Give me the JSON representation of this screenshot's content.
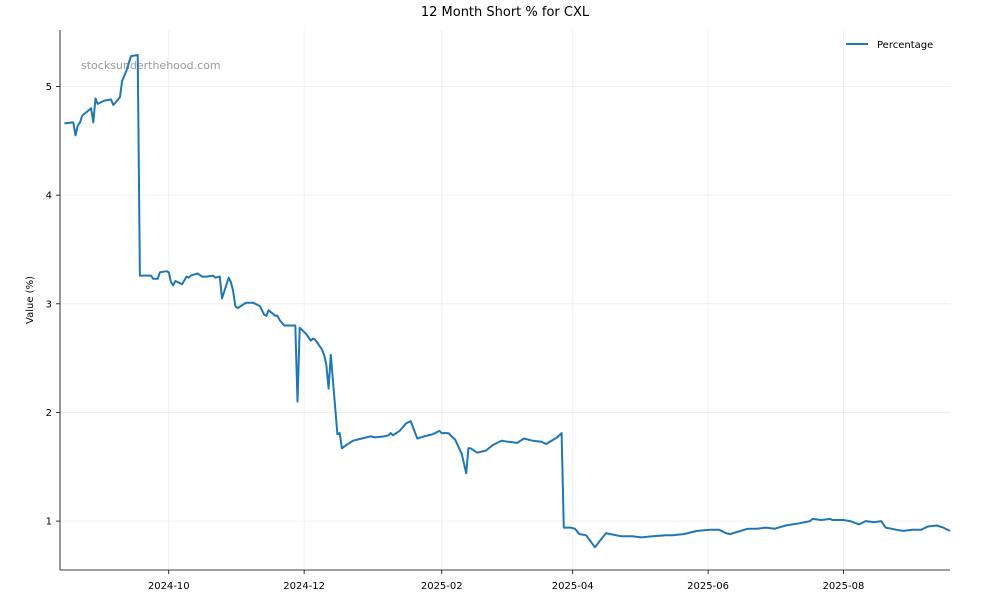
{
  "chart_data": {
    "type": "line",
    "title": "12 Month Short % for CXL",
    "xlabel": "",
    "ylabel": "Value (%)",
    "watermark": "stocksunderthehood.com",
    "x_range": [
      "2024-08-13",
      "2025-09-18"
    ],
    "ylim": [
      0.55,
      5.52
    ],
    "grid": true,
    "legend_position": "top-right",
    "x_ticks": [
      "2024-10",
      "2024-12",
      "2025-02",
      "2025-04",
      "2025-06",
      "2025-08"
    ],
    "y_ticks": [
      1,
      2,
      3,
      4,
      5
    ],
    "series": [
      {
        "name": "Percentage",
        "color": "#1f77b4",
        "points": [
          [
            "2024-08-15",
            4.66
          ],
          [
            "2024-08-19",
            4.67
          ],
          [
            "2024-08-20",
            4.55
          ],
          [
            "2024-08-21",
            4.64
          ],
          [
            "2024-08-22",
            4.67
          ],
          [
            "2024-08-23",
            4.73
          ],
          [
            "2024-08-27",
            4.8
          ],
          [
            "2024-08-28",
            4.67
          ],
          [
            "2024-08-29",
            4.89
          ],
          [
            "2024-08-30",
            4.84
          ],
          [
            "2024-09-02",
            4.87
          ],
          [
            "2024-09-05",
            4.88
          ],
          [
            "2024-09-06",
            4.83
          ],
          [
            "2024-09-09",
            4.9
          ],
          [
            "2024-09-10",
            5.05
          ],
          [
            "2024-09-12",
            5.15
          ],
          [
            "2024-09-14",
            5.28
          ],
          [
            "2024-09-17",
            5.29
          ],
          [
            "2024-09-18",
            3.26
          ],
          [
            "2024-09-20",
            3.26
          ],
          [
            "2024-09-23",
            3.26
          ],
          [
            "2024-09-24",
            3.23
          ],
          [
            "2024-09-26",
            3.23
          ],
          [
            "2024-09-27",
            3.29
          ],
          [
            "2024-09-30",
            3.3
          ],
          [
            "2024-10-01",
            3.29
          ],
          [
            "2024-10-02",
            3.2
          ],
          [
            "2024-10-03",
            3.17
          ],
          [
            "2024-10-04",
            3.21
          ],
          [
            "2024-10-07",
            3.18
          ],
          [
            "2024-10-09",
            3.25
          ],
          [
            "2024-10-10",
            3.24
          ],
          [
            "2024-10-11",
            3.26
          ],
          [
            "2024-10-14",
            3.28
          ],
          [
            "2024-10-16",
            3.25
          ],
          [
            "2024-10-18",
            3.25
          ],
          [
            "2024-10-21",
            3.26
          ],
          [
            "2024-10-22",
            3.24
          ],
          [
            "2024-10-24",
            3.25
          ],
          [
            "2024-10-25",
            3.05
          ],
          [
            "2024-10-28",
            3.24
          ],
          [
            "2024-10-29",
            3.2
          ],
          [
            "2024-10-30",
            3.12
          ],
          [
            "2024-10-31",
            2.98
          ],
          [
            "2024-11-01",
            2.96
          ],
          [
            "2024-11-04",
            3.0
          ],
          [
            "2024-11-05",
            3.01
          ],
          [
            "2024-11-08",
            3.01
          ],
          [
            "2024-11-11",
            2.98
          ],
          [
            "2024-11-13",
            2.9
          ],
          [
            "2024-11-14",
            2.89
          ],
          [
            "2024-11-15",
            2.94
          ],
          [
            "2024-11-18",
            2.89
          ],
          [
            "2024-11-19",
            2.89
          ],
          [
            "2024-11-20",
            2.85
          ],
          [
            "2024-11-22",
            2.8
          ],
          [
            "2024-11-26",
            2.8
          ],
          [
            "2024-11-27",
            2.8
          ],
          [
            "2024-11-28",
            2.1
          ],
          [
            "2024-11-29",
            2.78
          ],
          [
            "2024-12-02",
            2.72
          ],
          [
            "2024-12-04",
            2.66
          ],
          [
            "2024-12-05",
            2.68
          ],
          [
            "2024-12-06",
            2.67
          ],
          [
            "2024-12-09",
            2.58
          ],
          [
            "2024-12-10",
            2.53
          ],
          [
            "2024-12-11",
            2.44
          ],
          [
            "2024-12-12",
            2.22
          ],
          [
            "2024-12-13",
            2.53
          ],
          [
            "2024-12-16",
            1.8
          ],
          [
            "2024-12-17",
            1.81
          ],
          [
            "2024-12-18",
            1.67
          ],
          [
            "2024-12-20",
            1.7
          ],
          [
            "2024-12-23",
            1.74
          ],
          [
            "2024-12-27",
            1.76
          ],
          [
            "2024-12-31",
            1.78
          ],
          [
            "2025-01-02",
            1.77
          ],
          [
            "2025-01-06",
            1.78
          ],
          [
            "2025-01-08",
            1.79
          ],
          [
            "2025-01-09",
            1.81
          ],
          [
            "2025-01-10",
            1.79
          ],
          [
            "2025-01-13",
            1.83
          ],
          [
            "2025-01-16",
            1.9
          ],
          [
            "2025-01-18",
            1.92
          ],
          [
            "2025-01-21",
            1.76
          ],
          [
            "2025-01-24",
            1.78
          ],
          [
            "2025-01-28",
            1.8
          ],
          [
            "2025-01-31",
            1.83
          ],
          [
            "2025-02-01",
            1.81
          ],
          [
            "2025-02-04",
            1.81
          ],
          [
            "2025-02-07",
            1.75
          ],
          [
            "2025-02-10",
            1.62
          ],
          [
            "2025-02-12",
            1.44
          ],
          [
            "2025-02-13",
            1.67
          ],
          [
            "2025-02-14",
            1.67
          ],
          [
            "2025-02-17",
            1.63
          ],
          [
            "2025-02-21",
            1.65
          ],
          [
            "2025-02-24",
            1.7
          ],
          [
            "2025-02-26",
            1.72
          ],
          [
            "2025-02-28",
            1.74
          ],
          [
            "2025-03-03",
            1.73
          ],
          [
            "2025-03-07",
            1.72
          ],
          [
            "2025-03-10",
            1.76
          ],
          [
            "2025-03-14",
            1.74
          ],
          [
            "2025-03-18",
            1.73
          ],
          [
            "2025-03-20",
            1.71
          ],
          [
            "2025-03-25",
            1.77
          ],
          [
            "2025-03-27",
            1.81
          ],
          [
            "2025-03-28",
            0.94
          ],
          [
            "2025-03-31",
            0.94
          ],
          [
            "2025-04-02",
            0.93
          ],
          [
            "2025-04-04",
            0.88
          ],
          [
            "2025-04-07",
            0.87
          ],
          [
            "2025-04-11",
            0.76
          ],
          [
            "2025-04-16",
            0.89
          ],
          [
            "2025-04-18",
            0.88
          ],
          [
            "2025-04-23",
            0.86
          ],
          [
            "2025-04-28",
            0.86
          ],
          [
            "2025-05-02",
            0.85
          ],
          [
            "2025-05-07",
            0.86
          ],
          [
            "2025-05-13",
            0.87
          ],
          [
            "2025-05-16",
            0.87
          ],
          [
            "2025-05-21",
            0.88
          ],
          [
            "2025-05-27",
            0.91
          ],
          [
            "2025-06-02",
            0.92
          ],
          [
            "2025-06-06",
            0.92
          ],
          [
            "2025-06-09",
            0.89
          ],
          [
            "2025-06-11",
            0.88
          ],
          [
            "2025-06-14",
            0.9
          ],
          [
            "2025-06-19",
            0.93
          ],
          [
            "2025-06-23",
            0.93
          ],
          [
            "2025-06-27",
            0.94
          ],
          [
            "2025-07-01",
            0.93
          ],
          [
            "2025-07-06",
            0.96
          ],
          [
            "2025-07-12",
            0.98
          ],
          [
            "2025-07-17",
            1.0
          ],
          [
            "2025-07-18",
            1.02
          ],
          [
            "2025-07-22",
            1.01
          ],
          [
            "2025-07-26",
            1.02
          ],
          [
            "2025-07-27",
            1.01
          ],
          [
            "2025-08-01",
            1.01
          ],
          [
            "2025-08-04",
            1.0
          ],
          [
            "2025-08-08",
            0.97
          ],
          [
            "2025-08-11",
            1.0
          ],
          [
            "2025-08-15",
            0.99
          ],
          [
            "2025-08-18",
            1.0
          ],
          [
            "2025-08-20",
            0.94
          ],
          [
            "2025-08-25",
            0.92
          ],
          [
            "2025-08-28",
            0.91
          ],
          [
            "2025-09-01",
            0.92
          ],
          [
            "2025-09-05",
            0.92
          ],
          [
            "2025-09-08",
            0.95
          ],
          [
            "2025-09-12",
            0.96
          ],
          [
            "2025-09-15",
            0.94
          ],
          [
            "2025-09-18",
            0.91
          ]
        ]
      }
    ]
  }
}
